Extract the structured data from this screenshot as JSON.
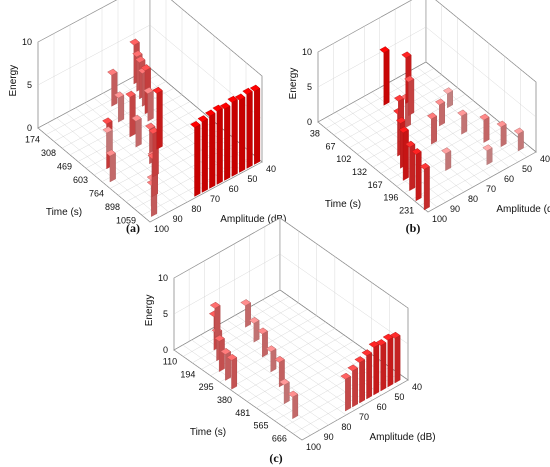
{
  "figure": {
    "panels": [
      {
        "caption": "(a)",
        "chart_data": {
          "type": "bar3d",
          "zlabel": "Energy",
          "xlabel": "Time (s)",
          "ylabel": "Amplitude (dB)",
          "zticks": [
            "0",
            "5",
            "10"
          ],
          "xticks": [
            "174",
            "308",
            "469",
            "603",
            "764",
            "898",
            "1059"
          ],
          "yticks": [
            "100",
            "90",
            "80",
            "70",
            "60",
            "50",
            "40"
          ],
          "zlim": [
            0,
            10
          ],
          "xlim": [
            100,
            1130
          ],
          "ylim": [
            40,
            100
          ],
          "grid": true,
          "color_scale": [
            "#f6dede",
            "#ff0000"
          ],
          "bars": [
            {
              "x": 130,
              "y": 50,
              "z": 4.5
            },
            {
              "x": 190,
              "y": 52,
              "z": 4.0
            },
            {
              "x": 250,
              "y": 54,
              "z": 4.2
            },
            {
              "x": 310,
              "y": 56,
              "z": 3.8
            },
            {
              "x": 370,
              "y": 58,
              "z": 5.0
            },
            {
              "x": 430,
              "y": 60,
              "z": 3.2
            },
            {
              "x": 200,
              "y": 66,
              "z": 3.6
            },
            {
              "x": 330,
              "y": 70,
              "z": 2.8
            },
            {
              "x": 470,
              "y": 72,
              "z": 4.6
            },
            {
              "x": 560,
              "y": 74,
              "z": 3.0
            },
            {
              "x": 650,
              "y": 68,
              "z": 6.5
            },
            {
              "x": 720,
              "y": 76,
              "z": 4.0
            },
            {
              "x": 820,
              "y": 80,
              "z": 5.0
            },
            {
              "x": 880,
              "y": 84,
              "z": 3.4
            },
            {
              "x": 950,
              "y": 88,
              "z": 4.4
            },
            {
              "x": 1010,
              "y": 92,
              "z": 3.0
            },
            {
              "x": 1080,
              "y": 96,
              "z": 3.6
            },
            {
              "x": 500,
              "y": 86,
              "z": 2.4
            },
            {
              "x": 600,
              "y": 92,
              "z": 5.2
            },
            {
              "x": 700,
              "y": 96,
              "z": 3.0
            },
            {
              "x": 1100,
              "y": 42,
              "z": 8.5
            },
            {
              "x": 1100,
              "y": 46,
              "z": 8.6
            },
            {
              "x": 1100,
              "y": 50,
              "z": 8.4
            },
            {
              "x": 1100,
              "y": 54,
              "z": 8.6
            },
            {
              "x": 1100,
              "y": 58,
              "z": 8.3
            },
            {
              "x": 1100,
              "y": 62,
              "z": 8.5
            },
            {
              "x": 1100,
              "y": 66,
              "z": 8.4
            },
            {
              "x": 1100,
              "y": 70,
              "z": 8.2
            },
            {
              "x": 1100,
              "y": 74,
              "z": 8.0
            }
          ]
        }
      },
      {
        "caption": "(b)",
        "chart_data": {
          "type": "bar3d",
          "zlabel": "Energy",
          "xlabel": "Time (s)",
          "ylabel": "Amplitude (dB)",
          "zticks": [
            "0",
            "5",
            "10"
          ],
          "xticks": [
            "38",
            "67",
            "102",
            "132",
            "167",
            "196",
            "231"
          ],
          "yticks": [
            "100",
            "90",
            "80",
            "70",
            "60",
            "50",
            "40"
          ],
          "zlim": [
            0,
            10
          ],
          "xlim": [
            20,
            240
          ],
          "ylim": [
            40,
            100
          ],
          "grid": true,
          "color_scale": [
            "#f6dede",
            "#ff0000"
          ],
          "bars": [
            {
              "x": 45,
              "y": 70,
              "z": 7.5
            },
            {
              "x": 60,
              "y": 62,
              "z": 6.5
            },
            {
              "x": 80,
              "y": 66,
              "z": 4.8
            },
            {
              "x": 95,
              "y": 72,
              "z": 4.0
            },
            {
              "x": 110,
              "y": 80,
              "z": 5.8
            },
            {
              "x": 130,
              "y": 86,
              "z": 6.0
            },
            {
              "x": 150,
              "y": 90,
              "z": 6.4
            },
            {
              "x": 170,
              "y": 94,
              "z": 6.8
            },
            {
              "x": 190,
              "y": 96,
              "z": 6.2
            },
            {
              "x": 210,
              "y": 98,
              "z": 6.6
            },
            {
              "x": 230,
              "y": 99,
              "z": 5.8
            },
            {
              "x": 120,
              "y": 60,
              "z": 3.0
            },
            {
              "x": 150,
              "y": 56,
              "z": 2.6
            },
            {
              "x": 180,
              "y": 52,
              "z": 3.2
            },
            {
              "x": 200,
              "y": 48,
              "z": 2.8
            },
            {
              "x": 220,
              "y": 44,
              "z": 2.4
            },
            {
              "x": 100,
              "y": 50,
              "z": 2.0
            },
            {
              "x": 140,
              "y": 70,
              "z": 3.6
            },
            {
              "x": 190,
              "y": 76,
              "z": 2.4
            },
            {
              "x": 215,
              "y": 60,
              "z": 2.0
            }
          ]
        }
      },
      {
        "caption": "(c)",
        "chart_data": {
          "type": "bar3d",
          "zlabel": "Energy",
          "xlabel": "Time (s)",
          "ylabel": "Amplitude (dB)",
          "zticks": [
            "0",
            "5",
            "10"
          ],
          "xticks": [
            "110",
            "194",
            "295",
            "380",
            "481",
            "565",
            "666"
          ],
          "yticks": [
            "100",
            "90",
            "80",
            "70",
            "60",
            "50",
            "40"
          ],
          "zlim": [
            0,
            10
          ],
          "xlim": [
            60,
            720
          ],
          "ylim": [
            40,
            100
          ],
          "grid": true,
          "color_scale": [
            "#f6dede",
            "#ff0000"
          ],
          "bars": [
            {
              "x": 90,
              "y": 80,
              "z": 4.0
            },
            {
              "x": 140,
              "y": 86,
              "z": 4.6
            },
            {
              "x": 190,
              "y": 90,
              "z": 3.8
            },
            {
              "x": 240,
              "y": 94,
              "z": 4.2
            },
            {
              "x": 290,
              "y": 96,
              "z": 3.6
            },
            {
              "x": 340,
              "y": 98,
              "z": 4.0
            },
            {
              "x": 120,
              "y": 66,
              "z": 3.0
            },
            {
              "x": 200,
              "y": 70,
              "z": 2.6
            },
            {
              "x": 280,
              "y": 74,
              "z": 3.2
            },
            {
              "x": 360,
              "y": 78,
              "z": 2.8
            },
            {
              "x": 440,
              "y": 82,
              "z": 3.4
            },
            {
              "x": 520,
              "y": 88,
              "z": 2.6
            },
            {
              "x": 600,
              "y": 92,
              "z": 3.0
            },
            {
              "x": 690,
              "y": 44,
              "z": 6.2
            },
            {
              "x": 690,
              "y": 48,
              "z": 6.5
            },
            {
              "x": 690,
              "y": 52,
              "z": 6.3
            },
            {
              "x": 690,
              "y": 56,
              "z": 6.6
            },
            {
              "x": 690,
              "y": 60,
              "z": 6.0
            },
            {
              "x": 690,
              "y": 64,
              "z": 5.6
            },
            {
              "x": 690,
              "y": 68,
              "z": 5.0
            },
            {
              "x": 690,
              "y": 72,
              "z": 4.4
            }
          ]
        }
      }
    ]
  }
}
